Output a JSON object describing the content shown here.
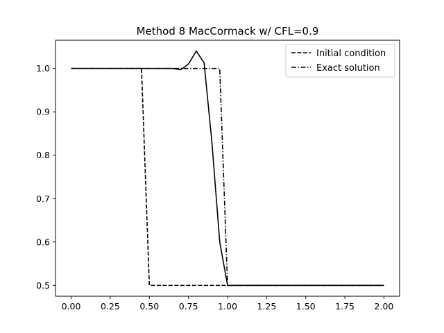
{
  "chart_data": {
    "type": "line",
    "title": "Method 8 MacCormack w/ CFL=0.9",
    "xlabel": "",
    "ylabel": "",
    "xlim": [
      -0.1,
      2.1
    ],
    "ylim": [
      0.475,
      1.065
    ],
    "xticks": [
      "0.00",
      "0.25",
      "0.50",
      "0.75",
      "1.00",
      "1.25",
      "1.50",
      "1.75",
      "2.00"
    ],
    "xtick_values": [
      0,
      0.25,
      0.5,
      0.75,
      1.0,
      1.25,
      1.5,
      1.75,
      2.0
    ],
    "yticks": [
      "0.5",
      "0.6",
      "0.7",
      "0.8",
      "0.9",
      "1.0"
    ],
    "ytick_values": [
      0.5,
      0.6,
      0.7,
      0.8,
      0.9,
      1.0
    ],
    "grid": false,
    "legend": {
      "position": "top-right",
      "entries": [
        "Initial condition",
        "Exact solution"
      ]
    },
    "series": [
      {
        "name": "Initial condition",
        "style": "dashed",
        "color": "#000000",
        "x": [
          0,
          0.45,
          0.5,
          2.0
        ],
        "y": [
          1.0,
          1.0,
          0.5,
          0.5
        ]
      },
      {
        "name": "Exact solution",
        "style": "dashdot",
        "color": "#000000",
        "x": [
          0,
          0.95,
          1.0,
          2.0
        ],
        "y": [
          1.0,
          1.0,
          0.5,
          0.5
        ]
      },
      {
        "name": "",
        "style": "solid",
        "color": "#000000",
        "x": [
          0,
          0.6,
          0.65,
          0.7,
          0.75,
          0.8,
          0.85,
          0.9,
          0.95,
          1.0,
          1.05,
          2.0
        ],
        "y": [
          1.0,
          1.0,
          1.0,
          0.997,
          1.01,
          1.04,
          1.013,
          0.83,
          0.6,
          0.5,
          0.5,
          0.5
        ]
      }
    ]
  }
}
